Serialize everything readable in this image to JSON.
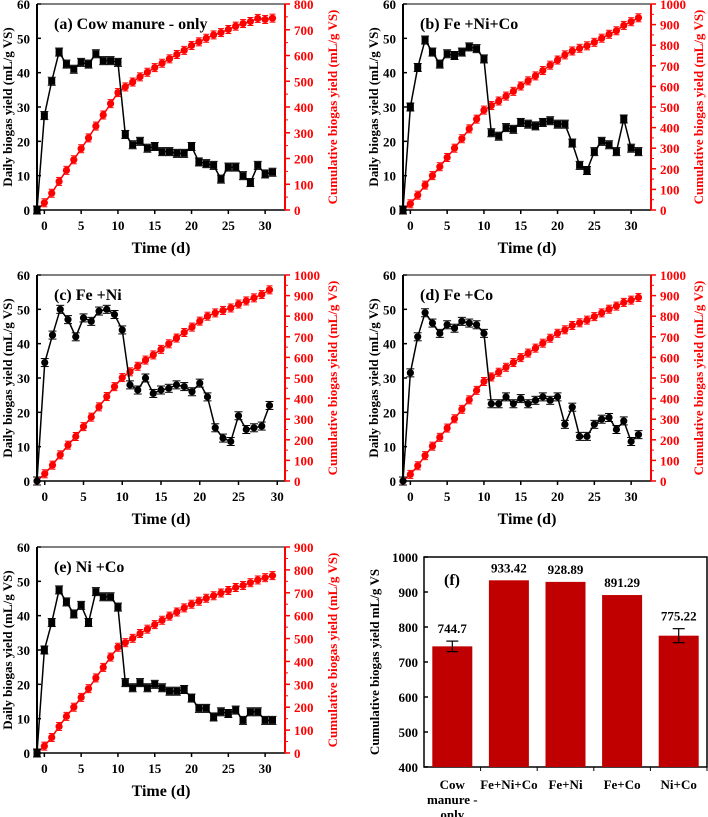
{
  "chart_data": [
    {
      "type": "line",
      "panel_label": "(a) Cow manure - only",
      "xlabel": "Time (d)",
      "ylabel": "Daily biogas yield (mL/g VS)",
      "y2label": "Cumulative biogas yield (mL/g VS)",
      "xlim": [
        -1,
        32.7
      ],
      "xticks": [
        0,
        5,
        10,
        15,
        20,
        25,
        30
      ],
      "ylim": [
        0,
        60
      ],
      "yticks": [
        0,
        10,
        20,
        30,
        40,
        50,
        60
      ],
      "y2lim": [
        0,
        800
      ],
      "y2ticks": [
        0,
        100,
        200,
        300,
        400,
        500,
        600,
        700,
        800
      ],
      "x": [
        -1,
        0,
        1,
        2,
        3,
        4,
        5,
        6,
        7,
        8,
        9,
        10,
        11,
        12,
        13,
        14,
        15,
        16,
        17,
        18,
        19,
        20,
        21,
        22,
        23,
        24,
        25,
        26,
        27,
        28,
        29,
        30,
        31
      ],
      "series": [
        {
          "name": "Daily biogas yield",
          "axis": "left",
          "color": "#000000",
          "marker": "square",
          "values": [
            0,
            27.5,
            37.5,
            46,
            42.5,
            41,
            43,
            42.5,
            45.5,
            43.5,
            43.5,
            43,
            22,
            19,
            20,
            18,
            18.5,
            17,
            17,
            16.5,
            16.5,
            18.5,
            14,
            13.5,
            13,
            9,
            12.5,
            12.5,
            10,
            8,
            13,
            10.5,
            11
          ]
        },
        {
          "name": "Cumulative biogas yield",
          "axis": "right",
          "color": "#ff0000",
          "marker": "circle",
          "values": [
            0,
            28,
            65,
            111,
            154,
            195,
            238,
            280,
            326,
            369,
            413,
            456,
            478,
            497,
            517,
            535,
            553,
            570,
            587,
            604,
            620,
            639,
            653,
            667,
            680,
            689,
            701,
            714,
            724,
            732,
            744,
            740,
            745
          ]
        }
      ]
    },
    {
      "type": "line",
      "panel_label": "(b) Fe +Ni+Co",
      "xlabel": "Time (d)",
      "ylabel": "Daily biogas yield (mL/g VS)",
      "y2label": "Cumulative biogas yield (mL/g VS)",
      "xlim": [
        -1,
        32.7
      ],
      "xticks": [
        0,
        5,
        10,
        15,
        20,
        25,
        30
      ],
      "ylim": [
        0,
        60
      ],
      "yticks": [
        0,
        10,
        20,
        30,
        40,
        50,
        60
      ],
      "y2lim": [
        0,
        1000
      ],
      "y2ticks": [
        0,
        100,
        200,
        300,
        400,
        500,
        600,
        700,
        800,
        900,
        1000
      ],
      "x": [
        -1,
        0,
        1,
        2,
        3,
        4,
        5,
        6,
        7,
        8,
        9,
        10,
        11,
        12,
        13,
        14,
        15,
        16,
        17,
        18,
        19,
        20,
        21,
        22,
        23,
        24,
        25,
        26,
        27,
        28,
        29,
        30,
        31
      ],
      "series": [
        {
          "name": "Daily biogas yield",
          "axis": "left",
          "color": "#000000",
          "marker": "square",
          "values": [
            0,
            30,
            41.5,
            49.5,
            46,
            42.5,
            45.5,
            45,
            46,
            47.5,
            47,
            44,
            22.5,
            21.5,
            24,
            23.5,
            25.5,
            25,
            24.5,
            25.5,
            26,
            25,
            25,
            19.5,
            13,
            11.5,
            17,
            20,
            19,
            17,
            26.5,
            18,
            17
          ]
        },
        {
          "name": "Cumulative biogas yield",
          "axis": "right",
          "color": "#ff0000",
          "marker": "circle",
          "values": [
            0,
            30,
            72,
            121,
            167,
            210,
            255,
            300,
            346,
            394,
            441,
            485,
            507,
            529,
            553,
            576,
            602,
            627,
            651,
            677,
            703,
            728,
            753,
            772,
            785,
            797,
            814,
            834,
            853,
            870,
            896,
            914,
            933
          ]
        }
      ]
    },
    {
      "type": "line",
      "panel_label": "(c) Fe +Ni",
      "xlabel": "Time (d)",
      "ylabel": "Daily biogas yield (mL/g VS)",
      "y2label": "Cumulative biogas yield (mL/g VS)",
      "xlim": [
        -1,
        31
      ],
      "xticks": [
        0,
        5,
        10,
        15,
        20,
        25,
        30
      ],
      "ylim": [
        0,
        60
      ],
      "yticks": [
        0,
        10,
        20,
        30,
        40,
        50,
        60
      ],
      "y2lim": [
        0,
        1000
      ],
      "y2ticks": [
        0,
        100,
        200,
        300,
        400,
        500,
        600,
        700,
        800,
        900,
        1000
      ],
      "x": [
        -1,
        0,
        1,
        2,
        3,
        4,
        5,
        6,
        7,
        8,
        9,
        10,
        11,
        12,
        13,
        14,
        15,
        16,
        17,
        18,
        19,
        20,
        21,
        22,
        23,
        24,
        25,
        26,
        27,
        28,
        29
      ],
      "series": [
        {
          "name": "Daily biogas yield",
          "axis": "left",
          "color": "#000000",
          "marker": "circle",
          "values": [
            0,
            34.5,
            42.5,
            50,
            47,
            42,
            47.5,
            46.5,
            49.5,
            50,
            48.5,
            44,
            28,
            26.5,
            30,
            25.5,
            26.5,
            27,
            28,
            27.5,
            26,
            28.5,
            24.5,
            15.5,
            12.5,
            11.5,
            19,
            15,
            15.5,
            16,
            22
          ]
        },
        {
          "name": "Cumulative biogas yield",
          "axis": "right",
          "color": "#ff0000",
          "marker": "circle",
          "values": [
            0,
            35,
            77,
            127,
            174,
            216,
            264,
            310,
            360,
            410,
            458,
            502,
            530,
            557,
            587,
            612,
            639,
            666,
            694,
            721,
            747,
            776,
            800,
            816,
            828,
            840,
            859,
            874,
            889,
            905,
            928
          ]
        }
      ]
    },
    {
      "type": "line",
      "panel_label": "(d) Fe +Co",
      "xlabel": "Time (d)",
      "ylabel": "Daily biogas yield (mL/g VS)",
      "y2label": "Cumulative biogas yield (mL/g VS)",
      "xlim": [
        -1,
        32.7
      ],
      "xticks": [
        0,
        5,
        10,
        15,
        20,
        25,
        30
      ],
      "ylim": [
        0,
        60
      ],
      "yticks": [
        0,
        10,
        20,
        30,
        40,
        50,
        60
      ],
      "y2lim": [
        0,
        1000
      ],
      "y2ticks": [
        0,
        100,
        200,
        300,
        400,
        500,
        600,
        700,
        800,
        900,
        1000
      ],
      "x": [
        -1,
        0,
        1,
        2,
        3,
        4,
        5,
        6,
        7,
        8,
        9,
        10,
        11,
        12,
        13,
        14,
        15,
        16,
        17,
        18,
        19,
        20,
        21,
        22,
        23,
        24,
        25,
        26,
        27,
        28,
        29,
        30,
        31
      ],
      "series": [
        {
          "name": "Daily biogas yield",
          "axis": "left",
          "color": "#000000",
          "marker": "circle",
          "values": [
            0,
            31.5,
            42,
            49,
            46,
            43,
            45.5,
            44.5,
            46.5,
            46,
            45.5,
            43,
            22.5,
            22.5,
            24.5,
            22.5,
            24,
            22.5,
            23.5,
            24.5,
            23.5,
            24.5,
            16.5,
            21.5,
            13,
            13,
            16.5,
            18,
            18.5,
            15,
            17.5,
            11.5,
            13.5
          ]
        },
        {
          "name": "Cumulative biogas yield",
          "axis": "right",
          "color": "#ff0000",
          "marker": "circle",
          "values": [
            0,
            32,
            74,
            123,
            169,
            212,
            257,
            302,
            348,
            394,
            440,
            483,
            505,
            528,
            552,
            575,
            599,
            621,
            645,
            669,
            693,
            717,
            734,
            755,
            768,
            781,
            798,
            816,
            834,
            849,
            867,
            878,
            891
          ]
        }
      ]
    },
    {
      "type": "line",
      "panel_label": "(e) Ni +Co",
      "xlabel": "Time (d)",
      "ylabel": "Daily biogas yield (mL/g VS)",
      "y2label": "Cumulative biogas yield (mL/g VS)",
      "xlim": [
        -1,
        32.7
      ],
      "xticks": [
        0,
        5,
        10,
        15,
        20,
        25,
        30
      ],
      "ylim": [
        0,
        60
      ],
      "yticks": [
        0,
        10,
        20,
        30,
        40,
        50,
        60
      ],
      "y2lim": [
        0,
        900
      ],
      "y2ticks": [
        0,
        100,
        200,
        300,
        400,
        500,
        600,
        700,
        800,
        900
      ],
      "x": [
        -1,
        0,
        1,
        2,
        3,
        4,
        5,
        6,
        7,
        8,
        9,
        10,
        11,
        12,
        13,
        14,
        15,
        16,
        17,
        18,
        19,
        20,
        21,
        22,
        23,
        24,
        25,
        26,
        27,
        28,
        29,
        30,
        31
      ],
      "series": [
        {
          "name": "Daily biogas yield",
          "axis": "left",
          "color": "#000000",
          "marker": "square",
          "values": [
            0,
            30,
            38,
            47.5,
            44,
            40.5,
            43,
            38,
            47,
            45.5,
            45.5,
            42.5,
            20.5,
            19,
            20.5,
            19,
            20,
            19,
            18,
            18,
            18.5,
            16,
            13,
            13,
            10.5,
            12,
            11.5,
            12.5,
            9.5,
            12,
            12,
            9.5,
            9.5
          ]
        },
        {
          "name": "Cumulative biogas yield",
          "axis": "right",
          "color": "#ff0000",
          "marker": "circle",
          "values": [
            0,
            30,
            68,
            116,
            160,
            200,
            243,
            281,
            328,
            374,
            419,
            462,
            482,
            501,
            522,
            541,
            561,
            580,
            598,
            616,
            634,
            650,
            663,
            676,
            687,
            699,
            710,
            723,
            732,
            744,
            756,
            766,
            775
          ]
        }
      ]
    },
    {
      "type": "bar",
      "panel_label": "(f)",
      "ylabel": "Cumulative biogas yield mL/g VS",
      "ylim": [
        400,
        1000
      ],
      "yticks": [
        400,
        500,
        600,
        700,
        800,
        900,
        1000
      ],
      "categories": [
        "Cow manure - only",
        "Fe+Ni+Co",
        "Fe+Ni",
        "Fe+Co",
        "Ni+Co"
      ],
      "category_lines": [
        [
          "Cow",
          "manure -",
          "only"
        ],
        [
          "Fe+Ni+Co"
        ],
        [
          "Fe+Ni"
        ],
        [
          "Fe+Co"
        ],
        [
          "Ni+Co"
        ]
      ],
      "values": [
        744.7,
        933.42,
        928.89,
        891.29,
        775.22
      ],
      "value_labels": [
        "744.7",
        "933.42",
        "928.89",
        "891.29",
        "775.22"
      ],
      "errors": [
        15,
        0,
        0,
        0,
        20
      ],
      "color": "#c00000"
    }
  ]
}
